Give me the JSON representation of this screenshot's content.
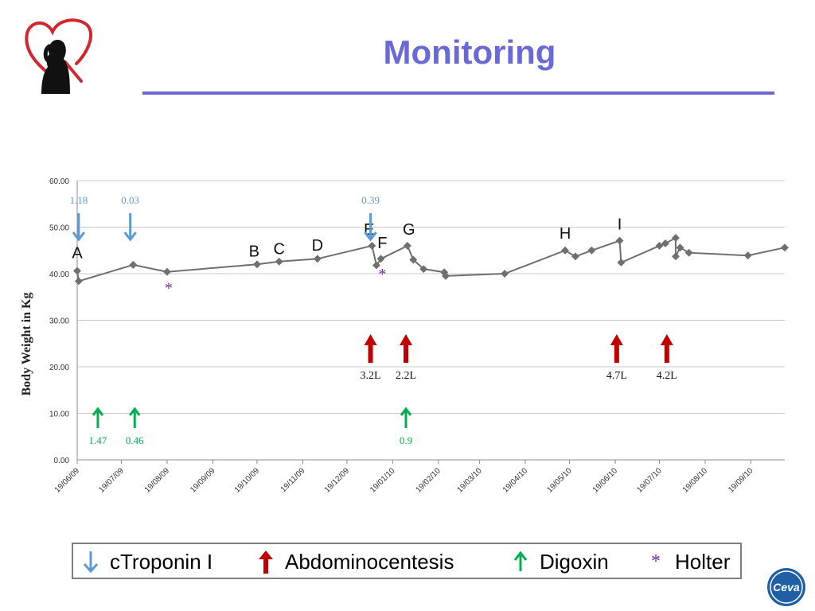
{
  "slide": {
    "title": "Monitoring"
  },
  "logo": {
    "icon": "heart-dog-logo-icon",
    "heart_color": "#d0282e"
  },
  "ceva": {
    "icon": "ceva-logo-icon",
    "text": "Ceva",
    "color": "#1f5fa6"
  },
  "legend": {
    "items": [
      {
        "icon": "arrow-down-icon",
        "label": "cTroponin I",
        "color": "#5b9bd5"
      },
      {
        "icon": "arrow-up-bold-icon",
        "label": "Abdominocentesis",
        "color": "#c00000"
      },
      {
        "icon": "arrow-up-icon",
        "label": "Digoxin",
        "color": "#00b050"
      },
      {
        "icon": "asterisk-icon",
        "label": "Holter",
        "symbol": "*",
        "color": "#7030a0"
      }
    ]
  },
  "chart_data": {
    "type": "line",
    "ylabel": "Body Weight in Kg",
    "xlabel": "",
    "ylim": [
      0,
      60
    ],
    "xlim": [
      "2009-06-19",
      "2010-10-12"
    ],
    "yticks": [
      "0.00",
      "10.00",
      "20.00",
      "30.00",
      "40.00",
      "50.00",
      "60.00"
    ],
    "xticks": [
      "19/06/09",
      "19/07/09",
      "19/08/09",
      "19/09/09",
      "19/10/09",
      "19/11/09",
      "19/12/09",
      "19/01/10",
      "19/02/10",
      "19/03/10",
      "19/04/10",
      "19/05/10",
      "19/06/10",
      "19/07/10",
      "19/08/10",
      "19/09/10"
    ],
    "grid": true,
    "line_color": "#6f6f6f",
    "series": [
      {
        "points": [
          [
            "2009-06-19",
            40.6
          ],
          [
            "2009-06-20",
            38.4
          ],
          [
            "2009-07-27",
            41.9
          ],
          [
            "2009-08-19",
            40.4
          ],
          [
            "2009-10-19",
            42.0
          ],
          [
            "2009-11-03",
            42.6
          ],
          [
            "2009-11-29",
            43.2
          ],
          [
            "2010-01-05",
            46.0
          ],
          [
            "2010-01-08",
            41.8
          ],
          [
            "2010-01-11",
            43.2
          ],
          [
            "2010-01-29",
            46.0
          ],
          [
            "2010-02-02",
            43.0
          ],
          [
            "2010-02-09",
            41.0
          ],
          [
            "2010-02-23",
            40.3
          ],
          [
            "2010-02-24",
            39.5
          ],
          [
            "2010-04-05",
            40.0
          ],
          [
            "2010-05-16",
            45.0
          ],
          [
            "2010-05-23",
            43.7
          ],
          [
            "2010-06-03",
            45.0
          ],
          [
            "2010-06-22",
            47.1
          ],
          [
            "2010-06-23",
            42.4
          ],
          [
            "2010-07-19",
            46.0
          ],
          [
            "2010-07-23",
            46.5
          ],
          [
            "2010-07-30",
            47.7
          ],
          [
            "2010-07-30",
            43.7
          ],
          [
            "2010-08-02",
            45.6
          ],
          [
            "2010-08-08",
            44.5
          ],
          [
            "2010-09-17",
            43.9
          ],
          [
            "2010-10-12",
            45.6
          ]
        ]
      }
    ],
    "annotations": {
      "letters": [
        {
          "label": "A",
          "x": "2009-06-19",
          "y": 43.3
        },
        {
          "label": "B",
          "x": "2009-10-17",
          "y": 43.7
        },
        {
          "label": "C",
          "x": "2009-11-03",
          "y": 44.2
        },
        {
          "label": "D",
          "x": "2009-11-29",
          "y": 45.0
        },
        {
          "label": "E",
          "x": "2010-01-03",
          "y": 48.4
        },
        {
          "label": "F",
          "x": "2010-01-12",
          "y": 45.5
        },
        {
          "label": "G",
          "x": "2010-01-30",
          "y": 48.4
        },
        {
          "label": "H",
          "x": "2010-05-16",
          "y": 47.5
        },
        {
          "label": "I",
          "x": "2010-06-22",
          "y": 49.5
        }
      ],
      "troponin": [
        {
          "x": "2009-06-20",
          "value": "1.18"
        },
        {
          "x": "2009-07-25",
          "value": "0.03"
        },
        {
          "x": "2010-01-04",
          "value": "0.39"
        }
      ],
      "abdominocentesis": [
        {
          "x": "2010-01-04",
          "value": "3.2L"
        },
        {
          "x": "2010-01-28",
          "value": "2.2L"
        },
        {
          "x": "2010-06-20",
          "value": "4.7L"
        },
        {
          "x": "2010-07-24",
          "value": "4.2L"
        }
      ],
      "digoxin": [
        {
          "x": "2009-07-03",
          "value": "1.47"
        },
        {
          "x": "2009-07-28",
          "value": "0.46"
        },
        {
          "x": "2010-01-28",
          "value": "0.9"
        }
      ],
      "holter": [
        {
          "x": "2009-08-20",
          "y": 35.8,
          "symbol": "*"
        },
        {
          "x": "2010-01-12",
          "y": 38.8,
          "symbol": "*"
        }
      ]
    }
  }
}
